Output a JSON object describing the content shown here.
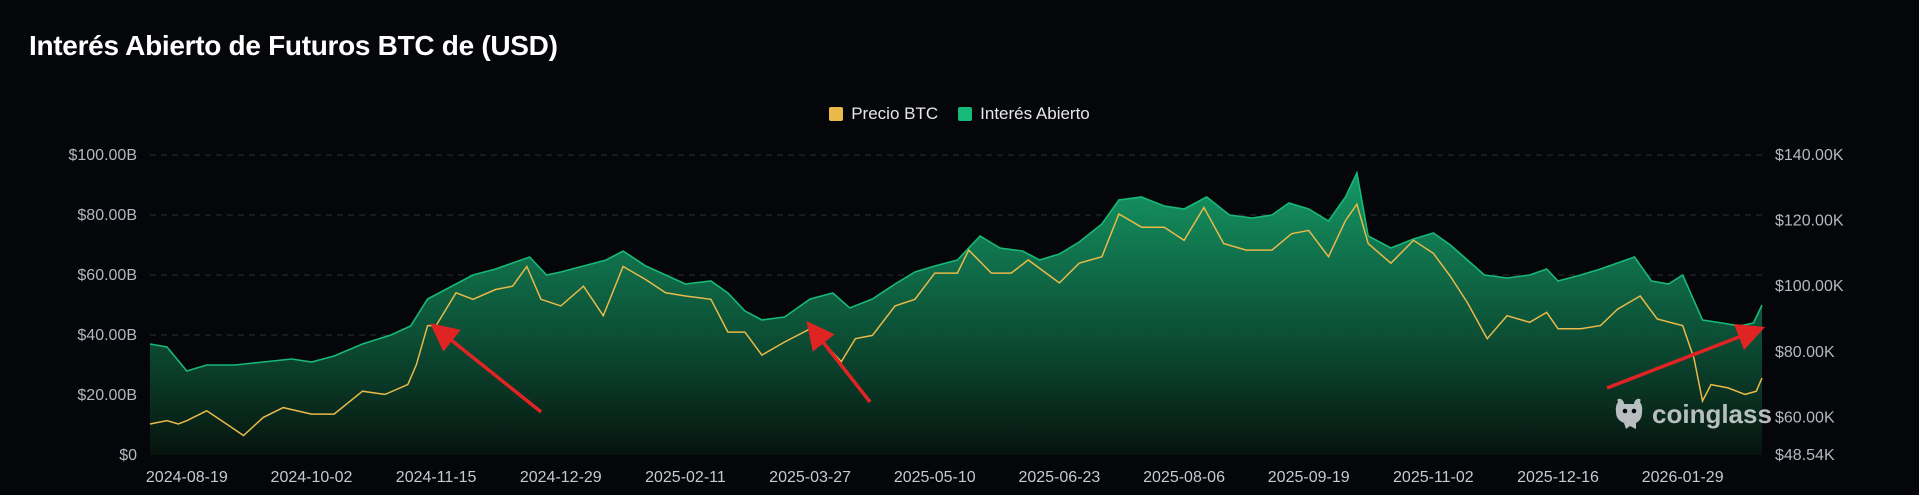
{
  "title": "Interés Abierto de Futuros BTC de (USD)",
  "legend": {
    "btc_label": "Precio BTC",
    "oi_label": "Interés Abierto",
    "btc_color": "#e9b949",
    "oi_color": "#17b978"
  },
  "watermark": {
    "text": "coinglass",
    "icon": "coinglass-logo-icon"
  },
  "chart_data": {
    "type": "area",
    "title": "Interés Abierto de Futuros BTC de (USD)",
    "x_tick_labels": [
      "2024-08-19",
      "2024-10-02",
      "2024-11-15",
      "2024-12-29",
      "2025-02-11",
      "2025-03-27",
      "2025-05-10",
      "2025-06-23",
      "2025-08-06",
      "2025-09-19",
      "2025-11-02",
      "2025-12-16",
      "2026-01-29"
    ],
    "left_axis": {
      "ticks": [
        0,
        20,
        40,
        60,
        80,
        100
      ],
      "tick_labels": [
        "$0",
        "$20.00B",
        "$40.00B",
        "$60.00B",
        "$80.00B",
        "$100.00B"
      ],
      "range": [
        0,
        100
      ],
      "unit": "USD billions"
    },
    "right_axis": {
      "ticks": [
        48.54,
        60,
        80,
        100,
        120,
        140
      ],
      "tick_labels": [
        "$48.54K",
        "$60.00K",
        "$80.00K",
        "$100.00K",
        "$120.00K",
        "$140.00K"
      ],
      "range": [
        48.54,
        140
      ],
      "unit": "USD thousands"
    },
    "x_range": [
      "2024-08-06",
      "2026-02-26"
    ],
    "grid": true,
    "legend_position": "top-center",
    "series": [
      {
        "name": "Interés Abierto",
        "axis": "left",
        "color": "#17b978",
        "points": [
          [
            "2024-08-06",
            37
          ],
          [
            "2024-08-12",
            36
          ],
          [
            "2024-08-19",
            28
          ],
          [
            "2024-08-26",
            30
          ],
          [
            "2024-09-05",
            30
          ],
          [
            "2024-09-15",
            31
          ],
          [
            "2024-09-25",
            32
          ],
          [
            "2024-10-02",
            31
          ],
          [
            "2024-10-10",
            33
          ],
          [
            "2024-10-20",
            37
          ],
          [
            "2024-10-30",
            40
          ],
          [
            "2024-11-06",
            43
          ],
          [
            "2024-11-12",
            52
          ],
          [
            "2024-11-20",
            56
          ],
          [
            "2024-11-28",
            60
          ],
          [
            "2024-12-06",
            62
          ],
          [
            "2024-12-12",
            64
          ],
          [
            "2024-12-18",
            66
          ],
          [
            "2024-12-24",
            60
          ],
          [
            "2024-12-29",
            61
          ],
          [
            "2025-01-06",
            63
          ],
          [
            "2025-01-14",
            65
          ],
          [
            "2025-01-20",
            68
          ],
          [
            "2025-01-28",
            63
          ],
          [
            "2025-02-04",
            60
          ],
          [
            "2025-02-11",
            57
          ],
          [
            "2025-02-20",
            58
          ],
          [
            "2025-02-26",
            54
          ],
          [
            "2025-03-04",
            48
          ],
          [
            "2025-03-10",
            45
          ],
          [
            "2025-03-18",
            46
          ],
          [
            "2025-03-27",
            52
          ],
          [
            "2025-04-04",
            54
          ],
          [
            "2025-04-10",
            49
          ],
          [
            "2025-04-18",
            52
          ],
          [
            "2025-04-26",
            57
          ],
          [
            "2025-05-03",
            61
          ],
          [
            "2025-05-10",
            63
          ],
          [
            "2025-05-18",
            65
          ],
          [
            "2025-05-26",
            73
          ],
          [
            "2025-06-02",
            69
          ],
          [
            "2025-06-10",
            68
          ],
          [
            "2025-06-16",
            65
          ],
          [
            "2025-06-23",
            67
          ],
          [
            "2025-06-30",
            71
          ],
          [
            "2025-07-08",
            77
          ],
          [
            "2025-07-14",
            85
          ],
          [
            "2025-07-22",
            86
          ],
          [
            "2025-07-30",
            83
          ],
          [
            "2025-08-06",
            82
          ],
          [
            "2025-08-14",
            86
          ],
          [
            "2025-08-22",
            80
          ],
          [
            "2025-08-30",
            79
          ],
          [
            "2025-09-06",
            80
          ],
          [
            "2025-09-12",
            84
          ],
          [
            "2025-09-19",
            82
          ],
          [
            "2025-09-26",
            78
          ],
          [
            "2025-10-02",
            86
          ],
          [
            "2025-10-06",
            94
          ],
          [
            "2025-10-10",
            73
          ],
          [
            "2025-10-18",
            69
          ],
          [
            "2025-10-26",
            72
          ],
          [
            "2025-11-02",
            74
          ],
          [
            "2025-11-08",
            70
          ],
          [
            "2025-11-14",
            65
          ],
          [
            "2025-11-20",
            60
          ],
          [
            "2025-11-28",
            59
          ],
          [
            "2025-12-06",
            60
          ],
          [
            "2025-12-12",
            62
          ],
          [
            "2025-12-16",
            58
          ],
          [
            "2025-12-24",
            60
          ],
          [
            "2025-12-31",
            62
          ],
          [
            "2026-01-06",
            64
          ],
          [
            "2026-01-12",
            66
          ],
          [
            "2026-01-18",
            58
          ],
          [
            "2026-01-24",
            57
          ],
          [
            "2026-01-29",
            60
          ],
          [
            "2026-02-05",
            45
          ],
          [
            "2026-02-12",
            44
          ],
          [
            "2026-02-18",
            43
          ],
          [
            "2026-02-23",
            44
          ],
          [
            "2026-02-26",
            50
          ]
        ]
      },
      {
        "name": "Precio BTC",
        "axis": "right",
        "color": "#e9b949",
        "points": [
          [
            "2024-08-06",
            58
          ],
          [
            "2024-08-12",
            59
          ],
          [
            "2024-08-16",
            58
          ],
          [
            "2024-08-19",
            59
          ],
          [
            "2024-08-26",
            62
          ],
          [
            "2024-09-02",
            58
          ],
          [
            "2024-09-08",
            54.5
          ],
          [
            "2024-09-15",
            60
          ],
          [
            "2024-09-22",
            63
          ],
          [
            "2024-10-02",
            61
          ],
          [
            "2024-10-10",
            61
          ],
          [
            "2024-10-20",
            68
          ],
          [
            "2024-10-28",
            67
          ],
          [
            "2024-11-05",
            70
          ],
          [
            "2024-11-08",
            76
          ],
          [
            "2024-11-12",
            88
          ],
          [
            "2024-11-15",
            88
          ],
          [
            "2024-11-22",
            98
          ],
          [
            "2024-11-28",
            96
          ],
          [
            "2024-12-06",
            99
          ],
          [
            "2024-12-12",
            100
          ],
          [
            "2024-12-17",
            106
          ],
          [
            "2024-12-22",
            96
          ],
          [
            "2024-12-29",
            94
          ],
          [
            "2025-01-06",
            100
          ],
          [
            "2025-01-13",
            91
          ],
          [
            "2025-01-20",
            106
          ],
          [
            "2025-01-28",
            102
          ],
          [
            "2025-02-04",
            98
          ],
          [
            "2025-02-11",
            97
          ],
          [
            "2025-02-20",
            96
          ],
          [
            "2025-02-26",
            86
          ],
          [
            "2025-03-04",
            86
          ],
          [
            "2025-03-10",
            79
          ],
          [
            "2025-03-18",
            83
          ],
          [
            "2025-03-27",
            87
          ],
          [
            "2025-04-07",
            77
          ],
          [
            "2025-04-12",
            84
          ],
          [
            "2025-04-18",
            85
          ],
          [
            "2025-04-26",
            94
          ],
          [
            "2025-05-03",
            96
          ],
          [
            "2025-05-10",
            104
          ],
          [
            "2025-05-18",
            104
          ],
          [
            "2025-05-22",
            111
          ],
          [
            "2025-05-30",
            104
          ],
          [
            "2025-06-06",
            104
          ],
          [
            "2025-06-12",
            108
          ],
          [
            "2025-06-23",
            101
          ],
          [
            "2025-06-30",
            107
          ],
          [
            "2025-07-08",
            109
          ],
          [
            "2025-07-14",
            122
          ],
          [
            "2025-07-22",
            118
          ],
          [
            "2025-07-30",
            118
          ],
          [
            "2025-08-06",
            114
          ],
          [
            "2025-08-13",
            124
          ],
          [
            "2025-08-20",
            113
          ],
          [
            "2025-08-28",
            111
          ],
          [
            "2025-09-06",
            111
          ],
          [
            "2025-09-13",
            116
          ],
          [
            "2025-09-19",
            117
          ],
          [
            "2025-09-26",
            109
          ],
          [
            "2025-10-02",
            120
          ],
          [
            "2025-10-06",
            125
          ],
          [
            "2025-10-10",
            113
          ],
          [
            "2025-10-18",
            107
          ],
          [
            "2025-10-26",
            114
          ],
          [
            "2025-11-02",
            110
          ],
          [
            "2025-11-08",
            103
          ],
          [
            "2025-11-14",
            95
          ],
          [
            "2025-11-21",
            84
          ],
          [
            "2025-11-28",
            91
          ],
          [
            "2025-12-06",
            89
          ],
          [
            "2025-12-12",
            92
          ],
          [
            "2025-12-16",
            87
          ],
          [
            "2025-12-24",
            87
          ],
          [
            "2025-12-31",
            88
          ],
          [
            "2026-01-06",
            93
          ],
          [
            "2026-01-14",
            97
          ],
          [
            "2026-01-20",
            90
          ],
          [
            "2026-01-29",
            88
          ],
          [
            "2026-02-02",
            78
          ],
          [
            "2026-02-05",
            65
          ],
          [
            "2026-02-08",
            70
          ],
          [
            "2026-02-14",
            69
          ],
          [
            "2026-02-20",
            67
          ],
          [
            "2026-02-24",
            68
          ],
          [
            "2026-02-26",
            72
          ]
        ]
      }
    ]
  }
}
